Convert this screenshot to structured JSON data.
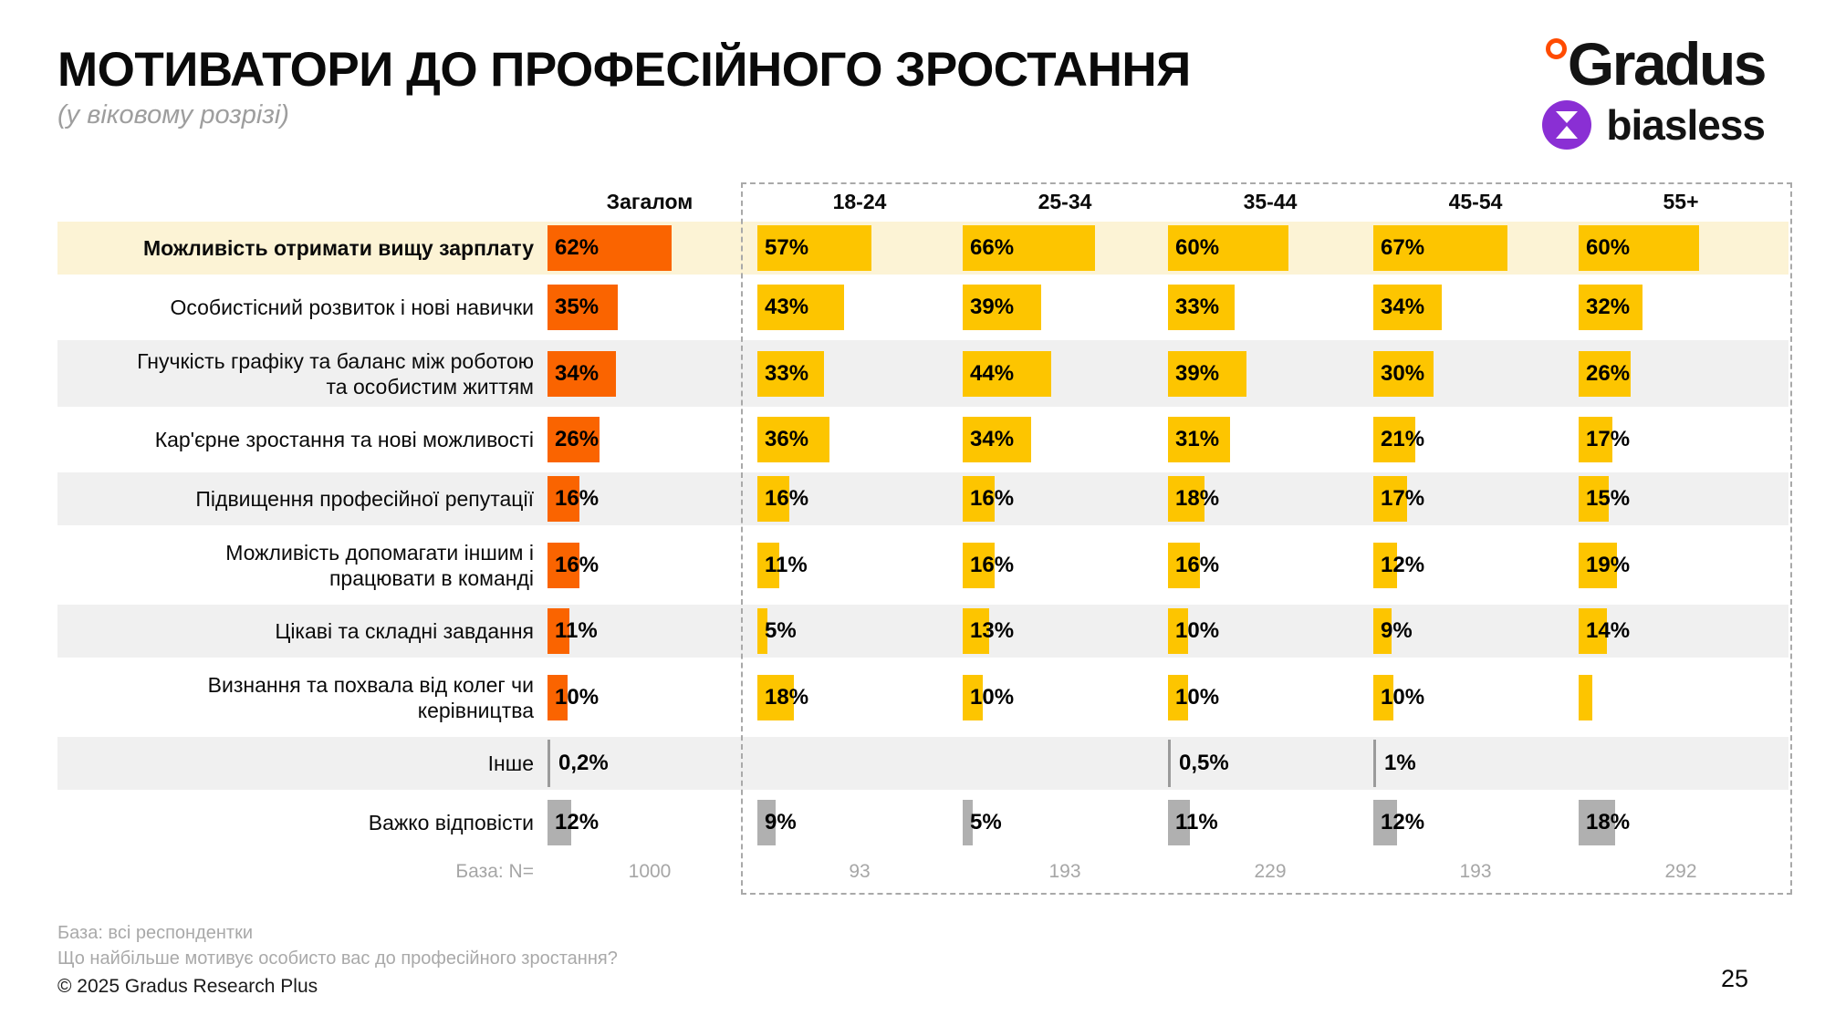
{
  "page": {
    "title": "МОТИВАТОРИ ДО ПРОФЕСІЙНОГО ЗРОСТАННЯ",
    "subtitle": "(у віковому розрізі)",
    "page_number": "25",
    "footer": {
      "base_note": "База: всі респондентки",
      "question": "Що найбільше мотивує особисто вас до професійного зростання?",
      "copyright": "© 2025 Gradus Research Plus"
    },
    "logos": {
      "gradus_text": "Gradus",
      "biasless_text": "biasless"
    }
  },
  "colors": {
    "orange": "#fa6400",
    "yellow": "#fdc500",
    "gray_bar": "#b0b0b0",
    "line_bar": "#9b9b9b",
    "highlight_row_bg": "#fcf3d5",
    "shaded_row_bg": "#f0f0f0",
    "biasless_purple": "#8a2fd4",
    "gradus_ring_orange": "#ff4b00",
    "dashed_border": "#a9a9a9"
  },
  "chart_data": {
    "type": "bar",
    "orientation": "horizontal",
    "title": "МОТИВАТОРИ ДО ПРОФЕСІЙНОГО ЗРОСТАННЯ",
    "subtitle": "(у віковому розрізі)",
    "columns": [
      "Загалом",
      "18-24",
      "25-34",
      "35-44",
      "45-54",
      "55+"
    ],
    "base_label": "База: N=",
    "bases": [
      "1000",
      "93",
      "193",
      "229",
      "193",
      "292"
    ],
    "rows": [
      {
        "lines": [
          "Можливість отримати вищу зарплату"
        ],
        "bold": true,
        "bg": "cream",
        "bar": "default",
        "values": [
          62,
          57,
          66,
          60,
          67,
          60
        ],
        "labels": [
          "62%",
          "57%",
          "66%",
          "60%",
          "67%",
          "60%"
        ]
      },
      {
        "lines": [
          "Особистісний розвиток і нові навички"
        ],
        "bold": false,
        "bg": "white",
        "bar": "default",
        "values": [
          35,
          43,
          39,
          33,
          34,
          32
        ],
        "labels": [
          "35%",
          "43%",
          "39%",
          "33%",
          "34%",
          "32%"
        ]
      },
      {
        "lines": [
          "Гнучкість графіку та баланс між роботою",
          "та особистим життям"
        ],
        "bold": false,
        "bg": "gray",
        "bar": "default",
        "values": [
          34,
          33,
          44,
          39,
          30,
          26
        ],
        "labels": [
          "34%",
          "33%",
          "44%",
          "39%",
          "30%",
          "26%"
        ]
      },
      {
        "lines": [
          "Кар'єрне зростання та нові можливості"
        ],
        "bold": false,
        "bg": "white",
        "bar": "default",
        "values": [
          26,
          36,
          34,
          31,
          21,
          17
        ],
        "labels": [
          "26%",
          "36%",
          "34%",
          "31%",
          "21%",
          "17%"
        ]
      },
      {
        "lines": [
          "Підвищення професійної репутації"
        ],
        "bold": false,
        "bg": "gray",
        "bar": "default",
        "values": [
          16,
          16,
          16,
          18,
          17,
          15
        ],
        "labels": [
          "16%",
          "16%",
          "16%",
          "18%",
          "17%",
          "15%"
        ]
      },
      {
        "lines": [
          "Можливість допомагати іншим і",
          "працювати в команді"
        ],
        "bold": false,
        "bg": "white",
        "bar": "default",
        "values": [
          16,
          11,
          16,
          16,
          12,
          19
        ],
        "labels": [
          "16%",
          "11%",
          "16%",
          "16%",
          "12%",
          "19%"
        ]
      },
      {
        "lines": [
          "Цікаві та складні завдання"
        ],
        "bold": false,
        "bg": "gray",
        "bar": "default",
        "values": [
          11,
          5,
          13,
          10,
          9,
          14
        ],
        "labels": [
          "11%",
          "5%",
          "13%",
          "10%",
          "9%",
          "14%"
        ]
      },
      {
        "lines": [
          "Визнання та похвала від колег чи",
          "керівництва"
        ],
        "bold": false,
        "bg": "white",
        "bar": "default",
        "values": [
          10,
          18,
          10,
          10,
          10,
          7
        ],
        "labels": [
          "10%",
          "18%",
          "10%",
          "10%",
          "10%",
          ""
        ]
      },
      {
        "lines": [
          "Інше"
        ],
        "bold": false,
        "bg": "gray",
        "bar": "line",
        "values": [
          0.2,
          null,
          null,
          0.5,
          1,
          null
        ],
        "labels": [
          "0,2%",
          "",
          "",
          "0,5%",
          "1%",
          ""
        ]
      },
      {
        "lines": [
          "Важко відповісти"
        ],
        "bold": false,
        "bg": "white",
        "bar": "gray",
        "values": [
          12,
          9,
          5,
          11,
          12,
          18
        ],
        "labels": [
          "12%",
          "9%",
          "5%",
          "11%",
          "12%",
          "18%"
        ]
      }
    ]
  }
}
